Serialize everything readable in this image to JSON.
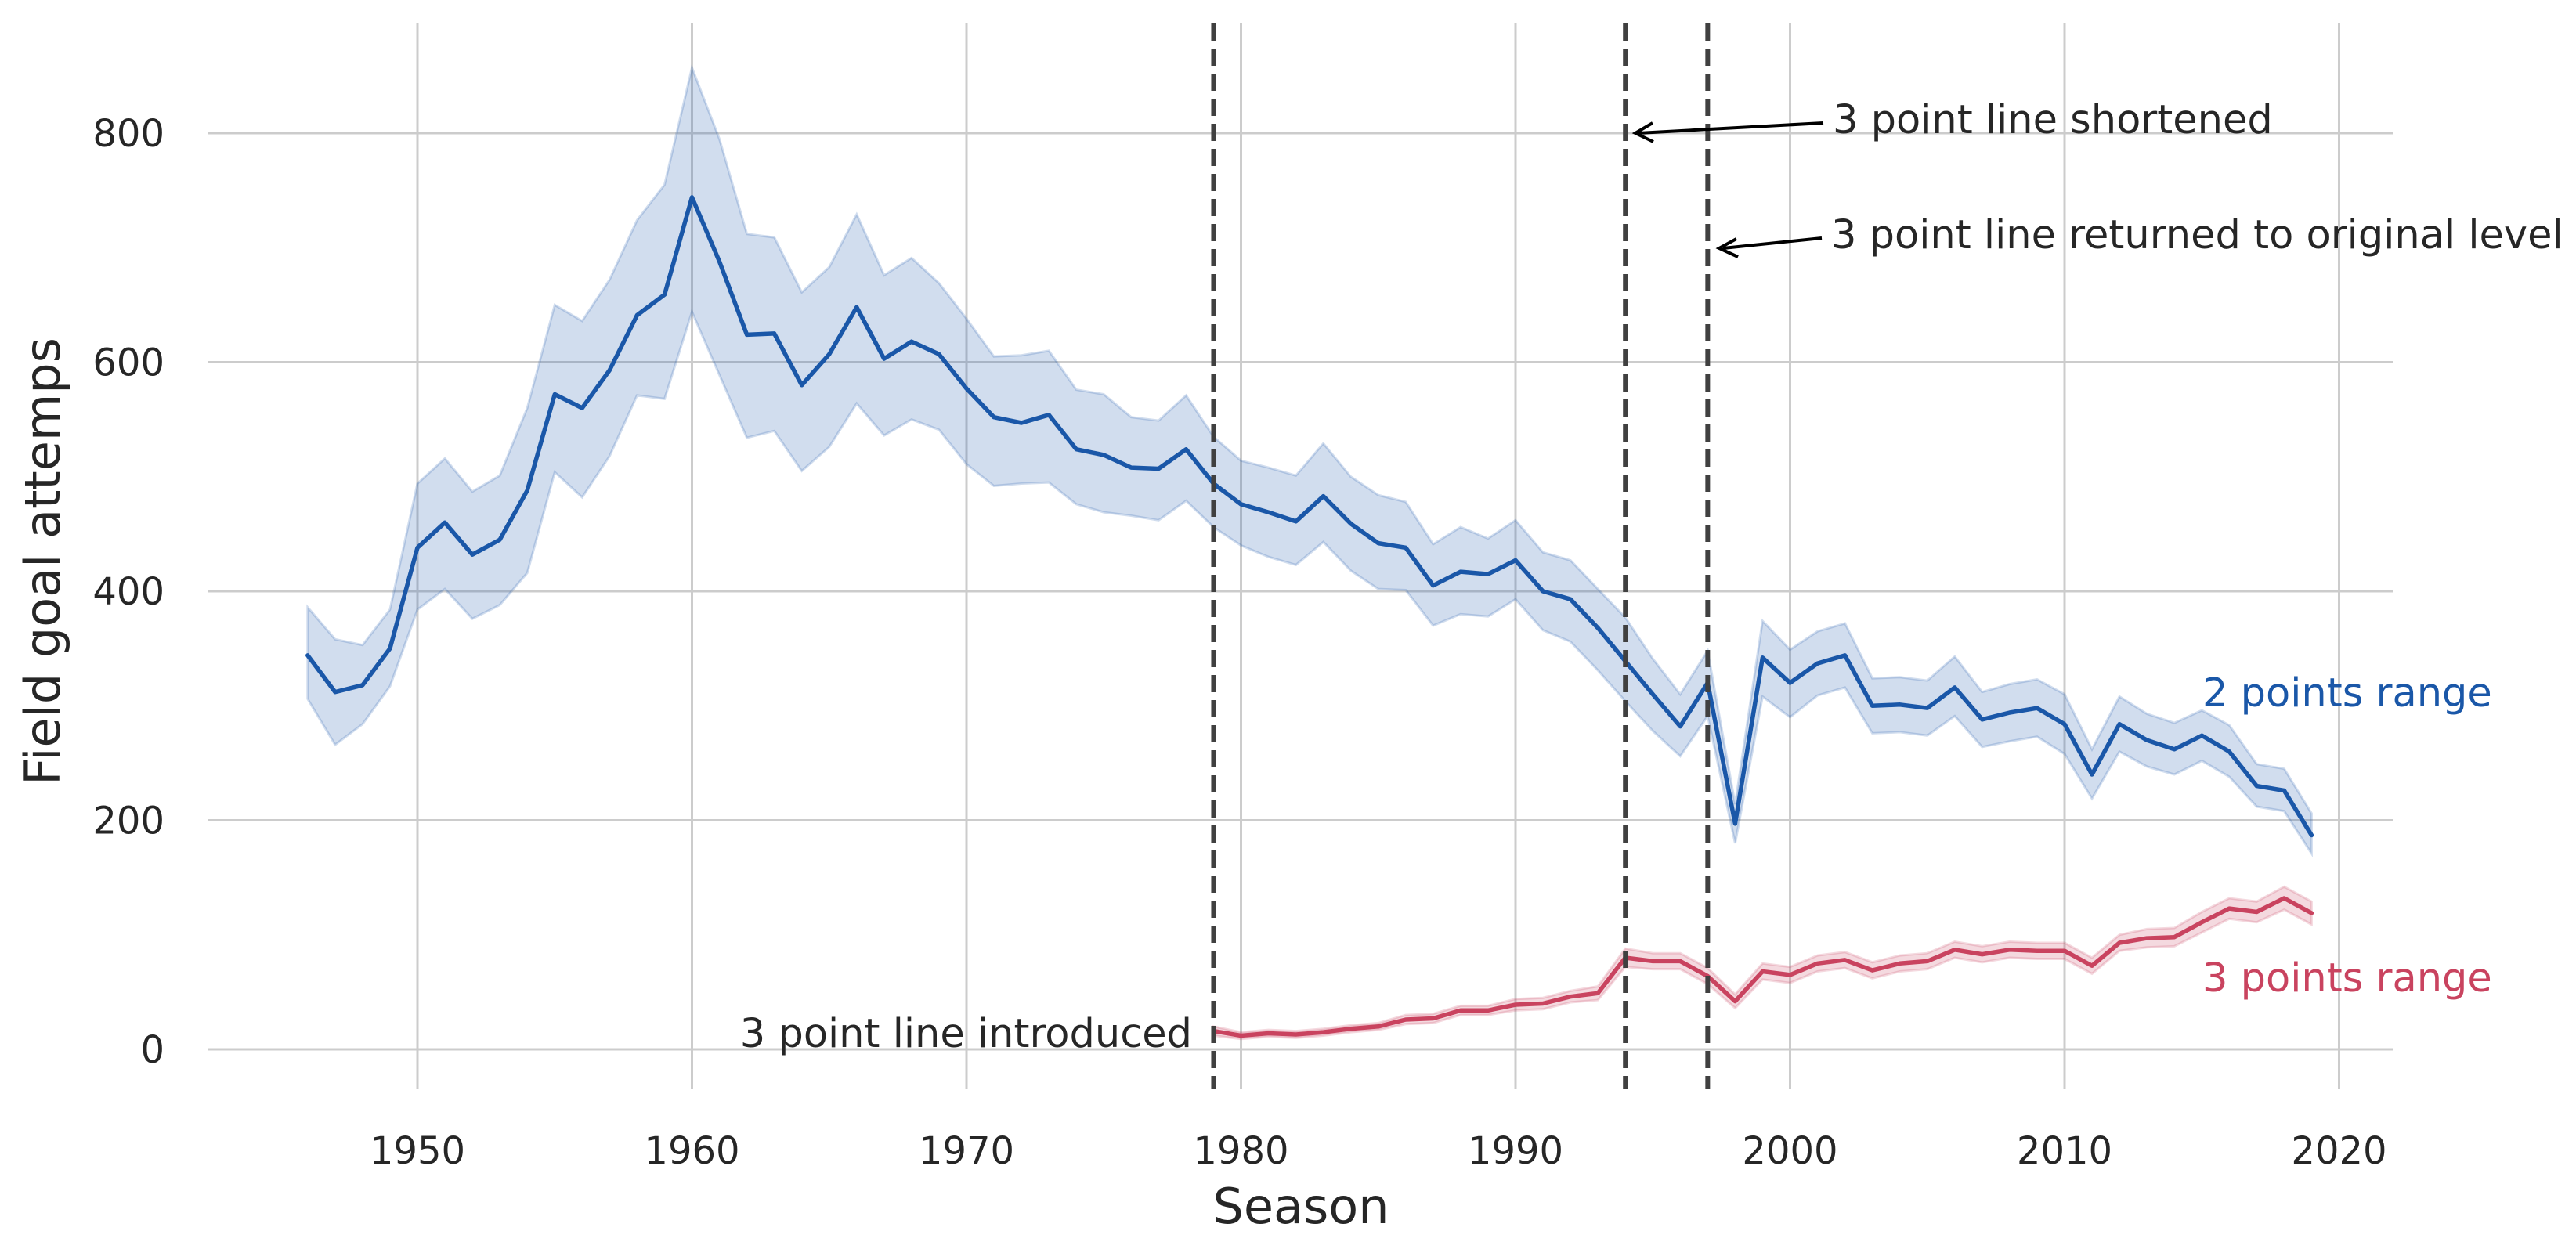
{
  "colors": {
    "two_points": "#1a57a8",
    "three_points": "#c9435f",
    "background": "#ffffff"
  },
  "chart_data": {
    "type": "line",
    "title": "",
    "xlabel": "Season",
    "ylabel": "Field goal attemps",
    "xlim": [
      1942,
      2022
    ],
    "ylim": [
      -45,
      895
    ],
    "xticks": [
      1950,
      1960,
      1970,
      1980,
      1990,
      2000,
      2010,
      2020
    ],
    "yticks": [
      0,
      200,
      400,
      600,
      800
    ],
    "grid": true,
    "legend": "direct labels at right end of lines",
    "series": [
      {
        "name": "2 points range",
        "color": "#1a57a8",
        "x": [
          1946,
          1947,
          1948,
          1949,
          1950,
          1951,
          1952,
          1953,
          1954,
          1955,
          1956,
          1957,
          1958,
          1959,
          1960,
          1961,
          1962,
          1963,
          1964,
          1965,
          1966,
          1967,
          1968,
          1969,
          1970,
          1971,
          1972,
          1973,
          1974,
          1975,
          1976,
          1977,
          1978,
          1979,
          1980,
          1981,
          1982,
          1983,
          1984,
          1985,
          1986,
          1987,
          1988,
          1989,
          1990,
          1991,
          1992,
          1993,
          1994,
          1995,
          1996,
          1997,
          1998,
          1999,
          2000,
          2001,
          2002,
          2003,
          2004,
          2005,
          2006,
          2007,
          2008,
          2009,
          2010,
          2011,
          2012,
          2013,
          2014,
          2015,
          2016,
          2017,
          2018,
          2019
        ],
        "y": [
          344,
          312,
          318,
          350,
          438,
          460,
          432,
          445,
          488,
          572,
          560,
          593,
          641,
          659,
          744,
          688,
          624,
          625,
          580,
          607,
          648,
          603,
          618,
          607,
          577,
          552,
          547,
          554,
          524,
          519,
          508,
          507,
          524,
          494,
          476,
          469,
          461,
          483,
          459,
          442,
          438,
          405,
          417,
          415,
          427,
          400,
          393,
          368,
          339,
          310,
          282,
          320,
          197,
          342,
          320,
          337,
          344,
          300,
          301,
          298,
          316,
          288,
          294,
          298,
          284,
          240,
          284,
          270,
          262,
          274,
          260,
          230,
          226,
          187
        ],
        "lower": [
          306,
          266,
          284,
          317,
          384,
          402,
          376,
          388,
          416,
          504,
          482,
          518,
          571,
          568,
          644,
          589,
          534,
          540,
          505,
          526,
          564,
          536,
          550,
          541,
          511,
          492,
          494,
          495,
          476,
          469,
          466,
          462,
          479,
          456,
          440,
          430,
          423,
          443,
          418,
          402,
          401,
          370,
          380,
          378,
          393,
          366,
          356,
          331,
          304,
          278,
          256,
          291,
          180,
          308,
          290,
          309,
          316,
          276,
          277,
          274,
          291,
          264,
          269,
          273,
          258,
          219,
          260,
          247,
          240,
          252,
          238,
          212,
          208,
          171
        ],
        "upper": [
          386,
          358,
          353,
          384,
          494,
          516,
          487,
          501,
          560,
          650,
          636,
          672,
          724,
          755,
          857,
          795,
          712,
          709,
          661,
          683,
          729,
          676,
          691,
          669,
          638,
          605,
          606,
          610,
          576,
          572,
          552,
          549,
          571,
          535,
          514,
          508,
          501,
          529,
          500,
          484,
          478,
          441,
          456,
          446,
          462,
          434,
          427,
          402,
          377,
          341,
          310,
          348,
          214,
          374,
          349,
          365,
          372,
          324,
          325,
          322,
          343,
          312,
          319,
          323,
          310,
          262,
          308,
          293,
          285,
          296,
          283,
          249,
          245,
          206
        ]
      },
      {
        "name": "3 points range",
        "color": "#c9435f",
        "x": [
          1979,
          1980,
          1981,
          1982,
          1983,
          1984,
          1985,
          1986,
          1987,
          1988,
          1989,
          1990,
          1991,
          1992,
          1993,
          1994,
          1995,
          1996,
          1997,
          1998,
          1999,
          2000,
          2001,
          2002,
          2003,
          2004,
          2005,
          2006,
          2007,
          2008,
          2009,
          2010,
          2011,
          2012,
          2013,
          2014,
          2015,
          2016,
          2017,
          2018,
          2019
        ],
        "y": [
          16,
          12,
          14,
          13,
          15,
          18,
          20,
          26,
          27,
          34,
          34,
          39,
          40,
          46,
          49,
          80,
          77,
          77,
          64,
          42,
          68,
          65,
          75,
          78,
          69,
          75,
          77,
          87,
          83,
          87,
          86,
          86,
          73,
          93,
          97,
          98,
          111,
          123,
          120,
          132,
          119
        ],
        "lower": [
          12,
          9,
          11,
          10,
          12,
          15,
          17,
          22,
          23,
          30,
          30,
          34,
          35,
          41,
          43,
          72,
          70,
          70,
          57,
          36,
          61,
          58,
          68,
          71,
          62,
          68,
          70,
          80,
          76,
          80,
          79,
          79,
          66,
          86,
          89,
          90,
          102,
          114,
          111,
          122,
          109
        ],
        "upper": [
          20,
          15,
          17,
          16,
          18,
          21,
          23,
          30,
          31,
          38,
          38,
          44,
          45,
          51,
          55,
          88,
          84,
          84,
          71,
          48,
          75,
          72,
          82,
          85,
          76,
          82,
          84,
          94,
          90,
          94,
          93,
          93,
          80,
          100,
          105,
          106,
          120,
          132,
          129,
          142,
          129
        ]
      }
    ],
    "annotations": [
      {
        "text": "3 point line introduced",
        "season": 1979
      },
      {
        "text": "3 point line shortened",
        "season": 1994
      },
      {
        "text": "3 point line returned to original level",
        "season": 1997
      }
    ],
    "reference_lines": [
      1979,
      1994,
      1997
    ]
  }
}
